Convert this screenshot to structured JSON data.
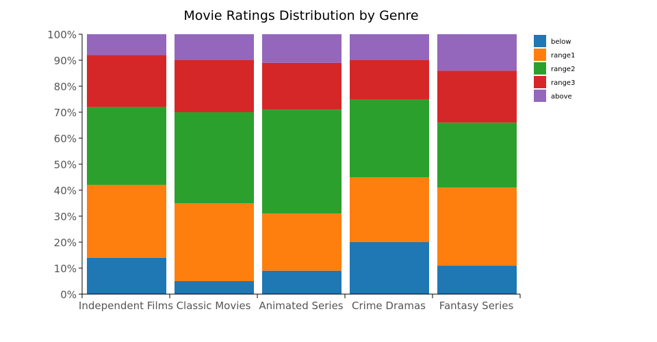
{
  "chart_data": {
    "type": "bar",
    "stacked": true,
    "normalized": true,
    "title": "Movie Ratings Distribution by Genre",
    "xlabel": "",
    "ylabel": "",
    "ylim": [
      0,
      100
    ],
    "y_ticks": [
      "0%",
      "10%",
      "20%",
      "30%",
      "40%",
      "50%",
      "60%",
      "70%",
      "80%",
      "90%",
      "100%"
    ],
    "categories": [
      "Independent Films",
      "Classic Movies",
      "Animated Series",
      "Crime Dramas",
      "Fantasy Series"
    ],
    "series": [
      {
        "name": "below",
        "color": "#1f77b4",
        "values": [
          14,
          5,
          9,
          20,
          11
        ]
      },
      {
        "name": "range1",
        "color": "#ff7f0e",
        "values": [
          28,
          30,
          22,
          25,
          30
        ]
      },
      {
        "name": "range2",
        "color": "#2ca02c",
        "values": [
          30,
          35,
          40,
          30,
          25
        ]
      },
      {
        "name": "range3",
        "color": "#d62728",
        "values": [
          20,
          20,
          18,
          15,
          20
        ]
      },
      {
        "name": "above",
        "color": "#9467bd",
        "values": [
          8,
          10,
          11,
          10,
          14
        ]
      }
    ],
    "legend_position": "top-right",
    "grid": false
  }
}
